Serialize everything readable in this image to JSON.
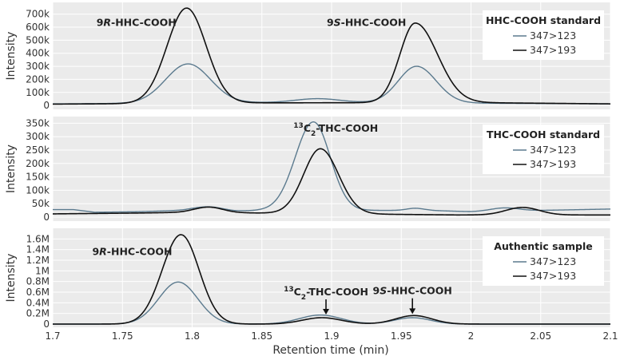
{
  "chart_data": [
    {
      "type": "line",
      "ylabel": "Intensity",
      "xlabel": "",
      "xlim": [
        1.7,
        2.1
      ],
      "ylim": [
        -30000,
        790000
      ],
      "yticks": [
        0,
        100000,
        200000,
        300000,
        400000,
        500000,
        600000,
        700000
      ],
      "ytick_labels": [
        "0",
        "100k",
        "200k",
        "300k",
        "400k",
        "500k",
        "600k",
        "700k"
      ],
      "grid": true,
      "legend": {
        "title": "HHC-COOH standard",
        "placement": "top-right"
      },
      "annotations": [
        {
          "parts": [
            {
              "t": "9"
            },
            {
              "t": "R",
              "i": true
            },
            {
              "t": "-HHC-COOH"
            }
          ],
          "x": 1.76,
          "y": 610000
        },
        {
          "parts": [
            {
              "t": "9"
            },
            {
              "t": "S",
              "i": true
            },
            {
              "t": "-HHC-COOH"
            }
          ],
          "x": 1.925,
          "y": 610000
        }
      ],
      "series": [
        {
          "name": "347>123",
          "color": "#5b7a8e",
          "peaks": [
            [
              1.797,
              300000,
              0.016,
              0.016
            ],
            [
              1.961,
              280000,
              0.013,
              0.014
            ],
            [
              1.89,
              30000,
              0.016,
              0.016
            ]
          ],
          "base": [
            [
              1.7,
              12000
            ],
            [
              1.85,
              22000
            ],
            [
              1.89,
              22000
            ],
            [
              1.93,
              22000
            ],
            [
              2.1,
              12000
            ]
          ]
        },
        {
          "name": "347>193",
          "color": "#111111",
          "peaks": [
            [
              1.796,
              730000,
              0.014,
              0.014
            ],
            [
              1.96,
              610000,
              0.011,
              0.016
            ]
          ],
          "base": [
            [
              1.7,
              10000
            ],
            [
              1.85,
              20000
            ],
            [
              2.0,
              22000
            ],
            [
              2.1,
              12000
            ]
          ]
        }
      ]
    },
    {
      "type": "line",
      "ylabel": "Intensity",
      "xlabel": "",
      "xlim": [
        1.7,
        2.1
      ],
      "ylim": [
        -15000,
        375000
      ],
      "yticks": [
        0,
        50000,
        100000,
        150000,
        200000,
        250000,
        300000,
        350000
      ],
      "ytick_labels": [
        "0",
        "50k",
        "100k",
        "150k",
        "200k",
        "250k",
        "300k",
        "350k"
      ],
      "grid": true,
      "legend": {
        "title": "THC-COOH standard",
        "placement": "top-right"
      },
      "annotations": [
        {
          "parts": [
            {
              "t": "13",
              "sup": true
            },
            {
              "t": "C"
            },
            {
              "t": "2",
              "sub": true
            },
            {
              "t": "-THC-COOH"
            }
          ],
          "x": 1.903,
          "y": 318000
        }
      ],
      "series": [
        {
          "name": "347>123",
          "color": "#5b7a8e",
          "peaks": [
            [
              1.887,
              330000,
              0.013,
              0.012
            ],
            [
              1.812,
              14000,
              0.01,
              0.01
            ],
            [
              1.96,
              8000,
              0.006,
              0.006
            ],
            [
              2.024,
              12000,
              0.01,
              0.01
            ]
          ],
          "base": [
            [
              1.7,
              28000
            ],
            [
              1.715,
              28000
            ],
            [
              1.73,
              18000
            ],
            [
              1.76,
              20000
            ],
            [
              1.8,
              26000
            ],
            [
              1.83,
              22000
            ],
            [
              1.85,
              25000
            ],
            [
              1.97,
              25000
            ],
            [
              2.0,
              20000
            ],
            [
              2.1,
              30000
            ]
          ]
        },
        {
          "name": "347>193",
          "color": "#111111",
          "peaks": [
            [
              1.892,
              242000,
              0.012,
              0.013
            ],
            [
              1.812,
              20000,
              0.01,
              0.01
            ],
            [
              2.037,
              28000,
              0.012,
              0.012
            ]
          ],
          "base": [
            [
              1.7,
              12000
            ],
            [
              1.76,
              15000
            ],
            [
              1.8,
              18000
            ],
            [
              1.85,
              15000
            ],
            [
              1.95,
              10000
            ],
            [
              1.99,
              8000
            ],
            [
              2.1,
              8000
            ]
          ]
        }
      ]
    },
    {
      "type": "line",
      "ylabel": "Intensity",
      "xlabel": "Retention time (min)",
      "xlim": [
        1.7,
        2.1
      ],
      "ylim": [
        -60000,
        1800000
      ],
      "yticks": [
        0,
        200000,
        400000,
        600000,
        800000,
        1000000,
        1200000,
        1400000,
        1600000
      ],
      "ytick_labels": [
        "0",
        "0.2M",
        "0.4M",
        "0.6M",
        "0.8M",
        "1M",
        "1.2M",
        "1.4M",
        "1.6M"
      ],
      "xticks": [
        1.7,
        1.75,
        1.8,
        1.85,
        1.9,
        1.95,
        2.0,
        2.05,
        2.1
      ],
      "xtick_labels": [
        "1.7",
        "1.75",
        "1.8",
        "1.85",
        "1.9",
        "1.95",
        "2",
        "2.05",
        "2.1"
      ],
      "grid": true,
      "legend": {
        "title": "Authentic sample",
        "placement": "top-right"
      },
      "annotations": [
        {
          "parts": [
            {
              "t": "9"
            },
            {
              "t": "R",
              "i": true
            },
            {
              "t": "-HHC-COOH"
            }
          ],
          "x": 1.757,
          "y": 1300000
        },
        {
          "parts": [
            {
              "t": "13",
              "sup": true
            },
            {
              "t": "C"
            },
            {
              "t": "2",
              "sub": true
            },
            {
              "t": "-THC-COOH"
            }
          ],
          "x": 1.896,
          "y": 540000,
          "arrow_to": [
            1.896,
            180000
          ]
        },
        {
          "parts": [
            {
              "t": "9"
            },
            {
              "t": "S",
              "i": true
            },
            {
              "t": "-HHC-COOH"
            }
          ],
          "x": 1.958,
          "y": 560000,
          "arrow_to": [
            1.958,
            190000
          ]
        }
      ],
      "series": [
        {
          "name": "347>123",
          "color": "#5b7a8e",
          "peaks": [
            [
              1.79,
              790000,
              0.014,
              0.014
            ],
            [
              1.892,
              170000,
              0.015,
              0.015
            ],
            [
              1.958,
              120000,
              0.013,
              0.013
            ]
          ],
          "base": [
            [
              1.7,
              0
            ],
            [
              2.1,
              0
            ]
          ]
        },
        {
          "name": "347>193",
          "color": "#111111",
          "peaks": [
            [
              1.792,
              1680000,
              0.0135,
              0.013
            ],
            [
              1.893,
              120000,
              0.014,
              0.014
            ],
            [
              1.959,
              160000,
              0.013,
              0.013
            ]
          ],
          "base": [
            [
              1.7,
              0
            ],
            [
              2.1,
              0
            ]
          ]
        }
      ]
    }
  ]
}
